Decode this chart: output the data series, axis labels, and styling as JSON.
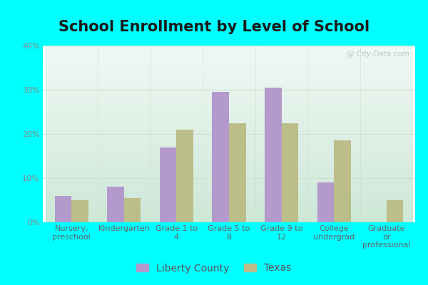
{
  "title": "School Enrollment by Level of School",
  "categories": [
    "Nursery,\npreschool",
    "Kindergarten",
    "Grade 1 to\n4",
    "Grade 5 to\n8",
    "Grade 9 to\n12",
    "College\nundergrad",
    "Graduate\nor\nprofessional"
  ],
  "liberty_county": [
    6,
    8,
    17,
    29.5,
    30.5,
    9,
    0
  ],
  "texas": [
    5,
    5.5,
    21,
    22.5,
    22.5,
    18.5,
    5
  ],
  "liberty_color": "#b399cc",
  "texas_color": "#bbbe88",
  "ylim": [
    0,
    40
  ],
  "yticks": [
    0,
    10,
    20,
    30,
    40
  ],
  "bar_width": 0.32,
  "legend_labels": [
    "Liberty County",
    "Texas"
  ],
  "title_fontsize": 15,
  "tick_fontsize": 8,
  "legend_fontsize": 10,
  "outer_bg": "#00ffff",
  "watermark": "@ City-Data.com",
  "bg_top_color": "#f0f8f0",
  "bg_bottom_color": "#e8f5f0"
}
